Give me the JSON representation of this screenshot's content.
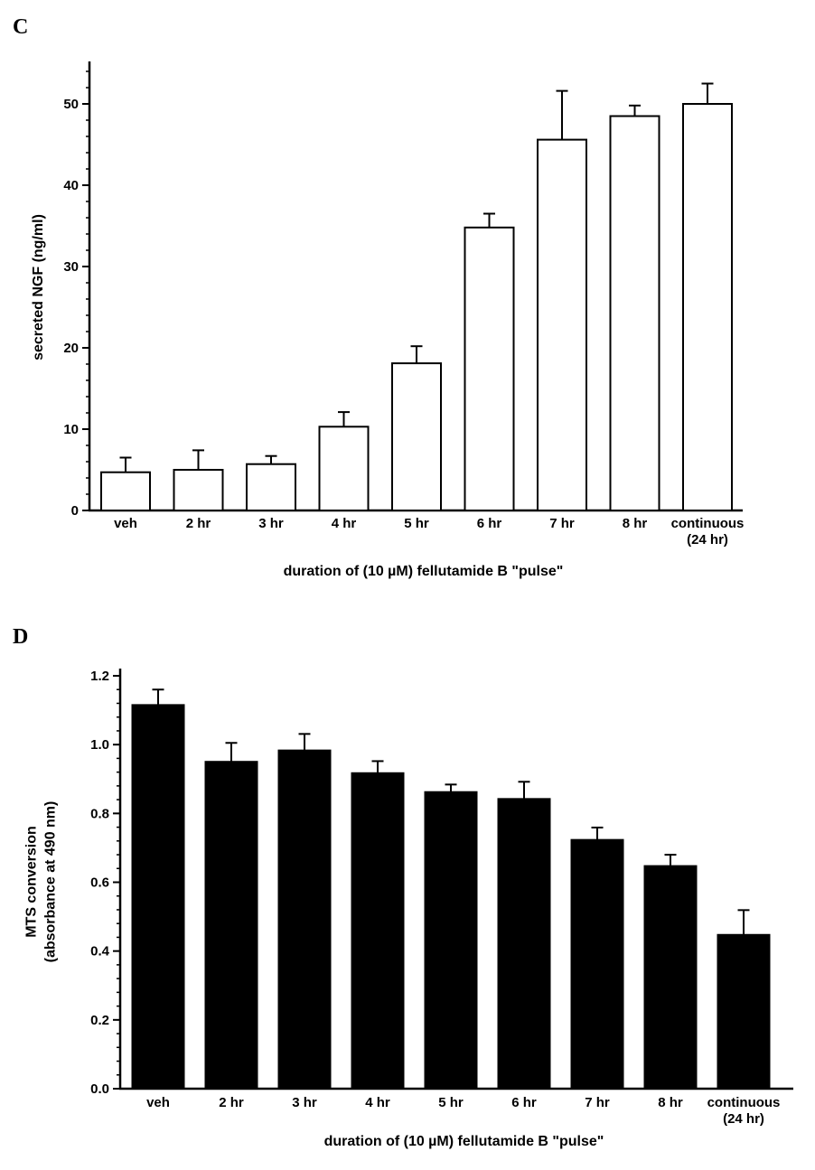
{
  "panels": [
    {
      "letter": "C"
    },
    {
      "letter": "D"
    }
  ],
  "chart_data": [
    {
      "type": "bar",
      "categories": [
        "veh",
        "2 hr",
        "3 hr",
        "4 hr",
        "5 hr",
        "6 hr",
        "7 hr",
        "8 hr",
        "continuous|(24 hr)"
      ],
      "values": [
        4.7,
        5.0,
        5.7,
        10.3,
        18.1,
        34.8,
        45.6,
        48.5,
        50.0
      ],
      "errors": [
        1.8,
        2.4,
        1.0,
        1.8,
        2.1,
        1.7,
        6.0,
        1.3,
        2.5
      ],
      "xlabel": "duration of (10 µM) fellutamide  B \"pulse\"",
      "ylabel": "secreted NGF (ng/ml)",
      "ylim": [
        0,
        55
      ],
      "yticks": [
        0,
        10,
        20,
        30,
        40,
        50
      ],
      "ytick_labels": [
        "0",
        "10",
        "20",
        "30",
        "40",
        "50"
      ],
      "bar_color": "#ffffff",
      "grid": false
    },
    {
      "type": "bar",
      "categories": [
        "veh",
        "2 hr",
        "3 hr",
        "4 hr",
        "5 hr",
        "6 hr",
        "7 hr",
        "8 hr",
        "continuous|(24 hr)"
      ],
      "values": [
        1.115,
        0.95,
        0.983,
        0.917,
        0.862,
        0.842,
        0.723,
        0.647,
        0.447
      ],
      "errors": [
        0.045,
        0.055,
        0.048,
        0.035,
        0.022,
        0.05,
        0.036,
        0.033,
        0.072
      ],
      "xlabel": "duration of (10 µM) fellutamide B \"pulse\"",
      "ylabel": "MTS conversion|(absorbance at 490 nm)",
      "ylim": [
        0,
        1.2
      ],
      "yticks": [
        0,
        0.2,
        0.4,
        0.6,
        0.8,
        1.0,
        1.2
      ],
      "ytick_labels": [
        "0.0",
        "0.2",
        "0.4",
        "0.6",
        "0.8",
        "1.0",
        "1.2"
      ],
      "bar_color": "#000000",
      "grid": false
    }
  ]
}
